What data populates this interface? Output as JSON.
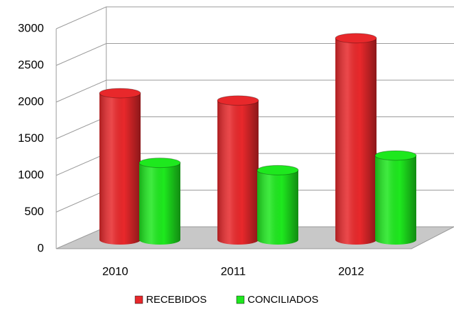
{
  "chart_data": {
    "type": "bar3d",
    "categories": [
      "2010",
      "2011",
      "2012"
    ],
    "series": [
      {
        "name": "RECEBIDOS",
        "color": "#e8282b",
        "values": [
          2000,
          1900,
          2750
        ]
      },
      {
        "name": "CONCILIADOS",
        "color": "#1ee81e",
        "values": [
          1050,
          950,
          1150
        ]
      }
    ],
    "ylim": [
      0,
      3000
    ],
    "yticks": [
      0,
      500,
      1000,
      1500,
      2000,
      2500,
      3000
    ],
    "grid": true
  }
}
